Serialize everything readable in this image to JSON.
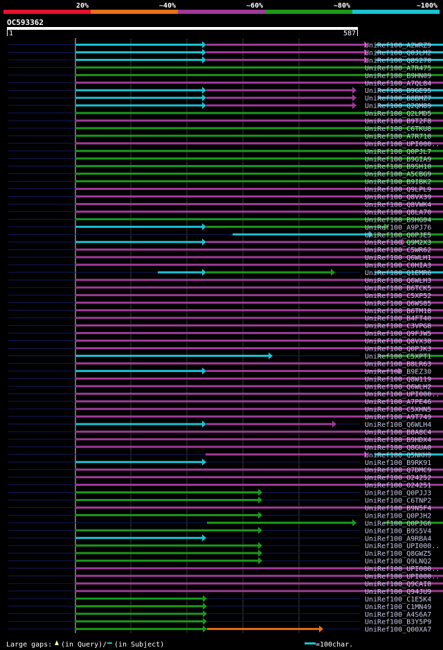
{
  "chart_data": {
    "type": "alignment-bars",
    "title": "OC593362",
    "query_start": "1",
    "query_end": "587",
    "query_length": 587,
    "identity_legend": [
      {
        "label": "20%",
        "color": "#e8102a"
      },
      {
        "label": "~40%",
        "color": "#e8701a"
      },
      {
        "label": "~60%",
        "color": "#a03a9a"
      },
      {
        "label": "~80%",
        "color": "#1a9a1a"
      },
      {
        "label": "~100%",
        "color": "#18c4d4"
      }
    ],
    "colors": {
      "purple": "#a03a9a",
      "green": "#1a9a1a",
      "cyan": "#18c4d4",
      "orange": "#e8701a",
      "navy": "#101a60",
      "label": "#c8c8e8",
      "axis": "#e8e8e8",
      "gap_marker": "#ffff99"
    },
    "hits": [
      {
        "label": "UniRef100_A2WRZ9",
        "segs": [
          [
            0,
            189,
            "cyan"
          ],
          [
            189,
            423,
            "purple"
          ],
          [
            434,
            615,
            "cyan"
          ]
        ],
        "tri": [
          235,
          385
        ]
      },
      {
        "label": "UniRef100_Q0JLM2",
        "segs": [
          [
            0,
            189,
            "cyan"
          ],
          [
            189,
            423,
            "purple"
          ],
          [
            434,
            615,
            "cyan"
          ]
        ],
        "tri": [
          235,
          385
        ]
      },
      {
        "label": "UniRef100_Q8S270",
        "segs": [
          [
            0,
            189,
            "cyan"
          ],
          [
            189,
            423,
            "purple"
          ],
          [
            434,
            615,
            "cyan"
          ]
        ],
        "tri": [
          235,
          385
        ]
      },
      {
        "label": "UniRef100_A7R475",
        "segs": [
          [
            0,
            608,
            "green"
          ]
        ],
        "tri": []
      },
      {
        "label": "UniRef100_B9HN09",
        "segs": [
          [
            0,
            608,
            "green"
          ]
        ],
        "tri": []
      },
      {
        "label": "UniRef100_A7QL84",
        "segs": [
          [
            0,
            608,
            "purple"
          ]
        ],
        "tri": []
      },
      {
        "label": "UniRef100_B9GE95",
        "segs": [
          [
            0,
            189,
            "cyan"
          ],
          [
            189,
            406,
            "purple"
          ],
          [
            437,
            615,
            "cyan"
          ]
        ],
        "tri": []
      },
      {
        "label": "UniRef100_B8BMZ7",
        "segs": [
          [
            0,
            189,
            "cyan"
          ],
          [
            189,
            406,
            "purple"
          ],
          [
            437,
            615,
            "cyan"
          ]
        ],
        "tri": []
      },
      {
        "label": "UniRef100_Q2QM89",
        "segs": [
          [
            0,
            189,
            "cyan"
          ],
          [
            189,
            406,
            "purple"
          ],
          [
            437,
            615,
            "cyan"
          ]
        ],
        "tri": []
      },
      {
        "label": "UniRef100_Q2LMD5",
        "segs": [
          [
            0,
            608,
            "green"
          ]
        ],
        "tri": []
      },
      {
        "label": "UniRef100_B9T2F8",
        "segs": [
          [
            0,
            608,
            "purple"
          ]
        ],
        "tri": []
      },
      {
        "label": "UniRef100_C6TKU8",
        "segs": [
          [
            0,
            608,
            "green"
          ]
        ],
        "tri": []
      },
      {
        "label": "UniRef100_A7R710",
        "segs": [
          [
            0,
            590,
            "green"
          ]
        ],
        "tri": []
      },
      {
        "label": "UniRef100_UPI000..",
        "segs": [
          [
            0,
            608,
            "purple"
          ]
        ],
        "tri": []
      },
      {
        "label": "UniRef100_Q0PJL7",
        "segs": [
          [
            0,
            608,
            "green"
          ]
        ],
        "tri": []
      },
      {
        "label": "UniRef100_B9GIA9",
        "segs": [
          [
            0,
            608,
            "green"
          ]
        ],
        "tri": []
      },
      {
        "label": "UniRef100_B9SH10",
        "segs": [
          [
            0,
            608,
            "green"
          ]
        ],
        "tri": []
      },
      {
        "label": "UniRef100_A5CBG9",
        "segs": [
          [
            0,
            590,
            "green"
          ]
        ],
        "tri": []
      },
      {
        "label": "UniRef100_B9IBK2",
        "segs": [
          [
            0,
            608,
            "green"
          ]
        ],
        "tri": []
      },
      {
        "label": "UniRef100_Q9LPL9",
        "segs": [
          [
            0,
            608,
            "purple"
          ]
        ],
        "tri": []
      },
      {
        "label": "UniRef100_Q8VX39",
        "segs": [
          [
            0,
            608,
            "purple"
          ]
        ],
        "tri": []
      },
      {
        "label": "UniRef100_Q8VWK4",
        "segs": [
          [
            0,
            608,
            "purple"
          ]
        ],
        "tri": []
      },
      {
        "label": "UniRef100_Q8LA70",
        "segs": [
          [
            0,
            608,
            "purple"
          ]
        ],
        "tri": []
      },
      {
        "label": "UniRef100_B9HG04",
        "segs": [
          [
            0,
            608,
            "green"
          ]
        ],
        "tri": []
      },
      {
        "label": "UniRef100_A9PJ76",
        "segs": [
          [
            0,
            189,
            "cyan"
          ],
          [
            189,
            452,
            "green"
          ]
        ],
        "tri": []
      },
      {
        "label": "UniRef100_Q0PJE5",
        "segs": [
          [
            227,
            430,
            "cyan"
          ],
          [
            430,
            590,
            "green"
          ]
        ],
        "tri": []
      },
      {
        "label": "UniRef100_Q9M2X3",
        "segs": [
          [
            0,
            189,
            "cyan"
          ],
          [
            189,
            477,
            "purple"
          ],
          [
            477,
            592,
            "green"
          ]
        ],
        "tri": []
      },
      {
        "label": "UniRef100_C5WR62",
        "segs": [
          [
            0,
            608,
            "purple"
          ]
        ],
        "tri": []
      },
      {
        "label": "UniRef100_Q6WLH1",
        "segs": [
          [
            0,
            608,
            "purple"
          ]
        ],
        "tri": []
      },
      {
        "label": "UniRef100_C0HIA3",
        "segs": [
          [
            0,
            608,
            "purple"
          ]
        ],
        "tri": []
      },
      {
        "label": "UniRef100_Q1EMR6",
        "segs": [
          [
            119,
            189,
            "cyan"
          ],
          [
            189,
            375,
            "green"
          ],
          [
            432,
            608,
            "cyan"
          ]
        ],
        "tri": []
      },
      {
        "label": "UniRef100_Q6WLH3",
        "segs": [
          [
            0,
            608,
            "purple"
          ]
        ],
        "tri": []
      },
      {
        "label": "UniRef100_B6TCK5",
        "segs": [
          [
            0,
            608,
            "purple"
          ]
        ],
        "tri": []
      },
      {
        "label": "UniRef100_C5XP52",
        "segs": [
          [
            0,
            608,
            "purple"
          ]
        ],
        "tri": []
      },
      {
        "label": "UniRef100_Q6WS85",
        "segs": [
          [
            0,
            608,
            "purple"
          ]
        ],
        "tri": []
      },
      {
        "label": "UniRef100_B6TM18",
        "segs": [
          [
            0,
            608,
            "purple"
          ]
        ],
        "tri": []
      },
      {
        "label": "UniRef100_B4FT40",
        "segs": [
          [
            0,
            608,
            "purple"
          ]
        ],
        "tri": []
      },
      {
        "label": "UniRef100_C3VPG8",
        "segs": [
          [
            0,
            608,
            "purple"
          ]
        ],
        "tri": []
      },
      {
        "label": "UniRef100_Q9FJW5",
        "segs": [
          [
            0,
            608,
            "purple"
          ]
        ],
        "tri": []
      },
      {
        "label": "UniRef100_Q8VX38",
        "segs": [
          [
            0,
            608,
            "purple"
          ]
        ],
        "tri": []
      },
      {
        "label": "UniRef100_Q0PJK3",
        "segs": [
          [
            0,
            608,
            "purple"
          ]
        ],
        "tri": []
      },
      {
        "label": "UniRef100_C5XPT1",
        "segs": [
          [
            0,
            285,
            "cyan"
          ],
          [
            438,
            608,
            "green"
          ]
        ],
        "tri": []
      },
      {
        "label": "UniRef100_B8LR63",
        "segs": [
          [
            0,
            608,
            "purple"
          ]
        ],
        "tri": []
      },
      {
        "label": "UniRef100_B9EZ30",
        "segs": [
          [
            0,
            189,
            "cyan"
          ],
          [
            189,
            472,
            "purple"
          ]
        ],
        "tri": []
      },
      {
        "label": "UniRef100_Q8W119",
        "segs": [
          [
            0,
            592,
            "purple"
          ]
        ],
        "tri": []
      },
      {
        "label": "UniRef100_Q6WLH2",
        "segs": [
          [
            0,
            592,
            "purple"
          ]
        ],
        "tri": []
      },
      {
        "label": "UniRef100_UPI000..",
        "segs": [
          [
            0,
            608,
            "purple"
          ]
        ],
        "tri": []
      },
      {
        "label": "UniRef100_A7PE46",
        "segs": [
          [
            0,
            608,
            "purple"
          ]
        ],
        "tri": []
      },
      {
        "label": "UniRef100_C5XHN5",
        "segs": [
          [
            0,
            592,
            "purple"
          ]
        ],
        "tri": []
      },
      {
        "label": "UniRef100_A9T749",
        "segs": [
          [
            0,
            608,
            "purple"
          ]
        ],
        "tri": []
      },
      {
        "label": "UniRef100_Q6WLH4",
        "segs": [
          [
            0,
            189,
            "cyan"
          ],
          [
            189,
            377,
            "purple"
          ]
        ],
        "tri": []
      },
      {
        "label": "UniRef100_B8A8C4",
        "segs": [
          [
            0,
            592,
            "purple"
          ]
        ],
        "tri": []
      },
      {
        "label": "UniRef100_B9HDX4",
        "segs": [
          [
            0,
            608,
            "purple"
          ]
        ],
        "tri": []
      },
      {
        "label": "UniRef100_Q8GUA0",
        "segs": [
          [
            0,
            592,
            "purple"
          ]
        ],
        "tri": []
      },
      {
        "label": "UniRef100_Q5NKH9",
        "segs": [
          [
            188,
            423,
            "purple"
          ],
          [
            432,
            608,
            "cyan"
          ]
        ],
        "tri": []
      },
      {
        "label": "UniRef100_B9RK91",
        "segs": [
          [
            0,
            189,
            "cyan"
          ]
        ],
        "tri": []
      },
      {
        "label": "UniRef100_Q7DMC9",
        "segs": [
          [
            0,
            608,
            "purple"
          ]
        ],
        "tri": []
      },
      {
        "label": "UniRef100_O24252",
        "segs": [
          [
            0,
            608,
            "purple"
          ]
        ],
        "tri": []
      },
      {
        "label": "UniRef100_O24251",
        "segs": [
          [
            0,
            608,
            "purple"
          ]
        ],
        "tri": []
      },
      {
        "label": "UniRef100_Q0PJJ3",
        "segs": [
          [
            0,
            270,
            "green"
          ]
        ],
        "tri": []
      },
      {
        "label": "UniRef100_C6TNP2",
        "segs": [
          [
            0,
            270,
            "green"
          ]
        ],
        "tri": []
      },
      {
        "label": "UniRef100_B9N5F4",
        "segs": [
          [
            0,
            608,
            "purple"
          ]
        ],
        "tri": []
      },
      {
        "label": "UniRef100_Q0PJH2",
        "segs": [
          [
            0,
            270,
            "green"
          ]
        ],
        "tri": []
      },
      {
        "label": "UniRef100_Q0PJG6",
        "segs": [
          [
            190,
            406,
            "green"
          ],
          [
            445,
            591,
            "green"
          ]
        ],
        "tri": []
      },
      {
        "label": "UniRef100_B9S5V4",
        "segs": [
          [
            0,
            270,
            "green"
          ]
        ],
        "tri": []
      },
      {
        "label": "UniRef100_A9RBA4",
        "segs": [
          [
            0,
            189,
            "cyan"
          ]
        ],
        "tri": []
      },
      {
        "label": "UniRef100_UPI000..",
        "segs": [
          [
            0,
            270,
            "green"
          ]
        ],
        "tri": []
      },
      {
        "label": "UniRef100_Q8GWZ5",
        "segs": [
          [
            0,
            270,
            "green"
          ]
        ],
        "tri": []
      },
      {
        "label": "UniRef100_Q9LNQ2",
        "segs": [
          [
            0,
            270,
            "green"
          ]
        ],
        "tri": []
      },
      {
        "label": "UniRef100_UPI000..",
        "segs": [
          [
            0,
            608,
            "purple"
          ]
        ],
        "tri": []
      },
      {
        "label": "UniRef100_UPI000..",
        "segs": [
          [
            0,
            608,
            "purple"
          ]
        ],
        "tri": []
      },
      {
        "label": "UniRef100_Q9CAI8",
        "segs": [
          [
            0,
            608,
            "purple"
          ]
        ],
        "tri": []
      },
      {
        "label": "UniRef100_Q94JU9",
        "segs": [
          [
            0,
            588,
            "purple"
          ]
        ],
        "tri": []
      },
      {
        "label": "UniRef100_C1E5K4",
        "segs": [
          [
            0,
            190,
            "green"
          ]
        ],
        "tri": []
      },
      {
        "label": "UniRef100_C1MN49",
        "segs": [
          [
            0,
            190,
            "green"
          ]
        ],
        "tri": []
      },
      {
        "label": "UniRef100_A4S6A7",
        "segs": [
          [
            0,
            190,
            "green"
          ]
        ],
        "tri": []
      },
      {
        "label": "UniRef100_B3Y5P9",
        "segs": [
          [
            0,
            190,
            "green"
          ]
        ],
        "tri": []
      },
      {
        "label": "UniRef100_Q00XA7",
        "segs": [
          [
            0,
            190,
            "green"
          ],
          [
            190,
            358,
            "orange"
          ]
        ],
        "tri": []
      }
    ],
    "footer": {
      "gaps_label": "Large gaps:",
      "in_query": "(in Query)/",
      "in_subject": "(in Subject)",
      "scale_label": "=100char."
    }
  }
}
